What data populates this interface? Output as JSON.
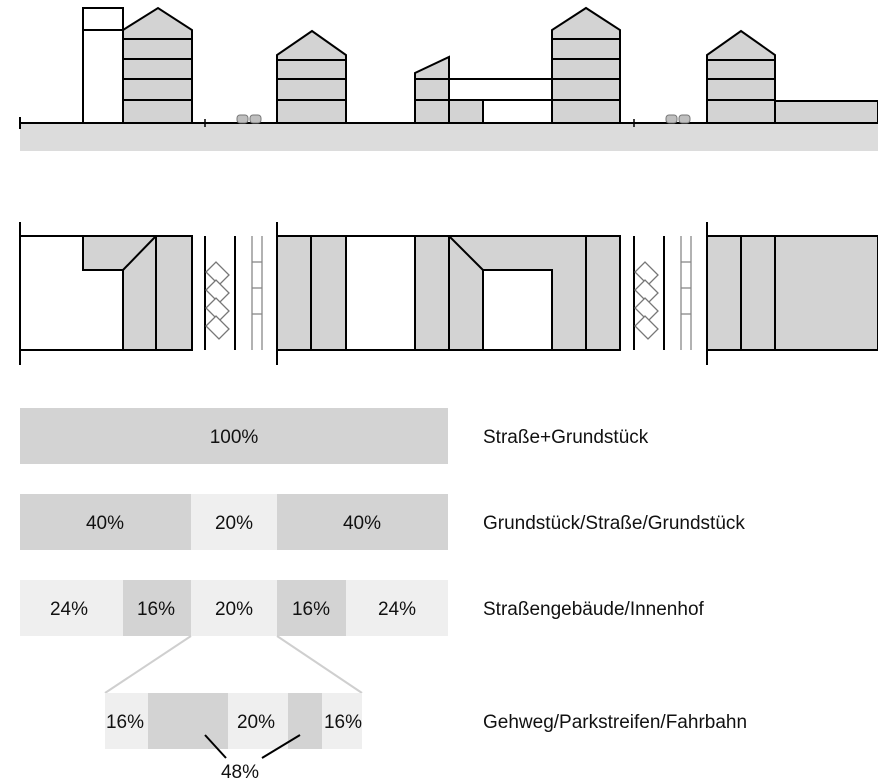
{
  "colors": {
    "background": "#ffffff",
    "ground": "#dcdcdc",
    "building": "#d3d3d3",
    "segment_dark": "#d0d0d0",
    "segment_medium": "#d9d9d9",
    "segment_light": "#efefef",
    "line": "#000000"
  },
  "icons": {
    "car": "car-icon",
    "parking": "parking-stall-icon"
  },
  "bars": [
    {
      "label": "Straße+Grundstück",
      "segments": [
        {
          "share": 100,
          "text": "100%"
        }
      ]
    },
    {
      "label": "Grundstück/Straße/Grundstück",
      "segments": [
        {
          "share": 40,
          "text": "40%"
        },
        {
          "share": 20,
          "text": "20%"
        },
        {
          "share": 40,
          "text": "40%"
        }
      ]
    },
    {
      "label": "Straßengebäude/Innenhof",
      "segments": [
        {
          "share": 24,
          "text": "24%"
        },
        {
          "share": 16,
          "text": "16%"
        },
        {
          "share": 20,
          "text": "20%"
        },
        {
          "share": 16,
          "text": "16%"
        },
        {
          "share": 24,
          "text": "24%"
        }
      ]
    },
    {
      "label": "Gehweg/Parkstreifen/Fahrbahn",
      "segments": [
        {
          "share": 16,
          "text": "16%"
        },
        {
          "share": 48,
          "text": "20%"
        },
        {
          "share": 16,
          "text": "16%"
        }
      ],
      "combined_text": "48%"
    }
  ]
}
